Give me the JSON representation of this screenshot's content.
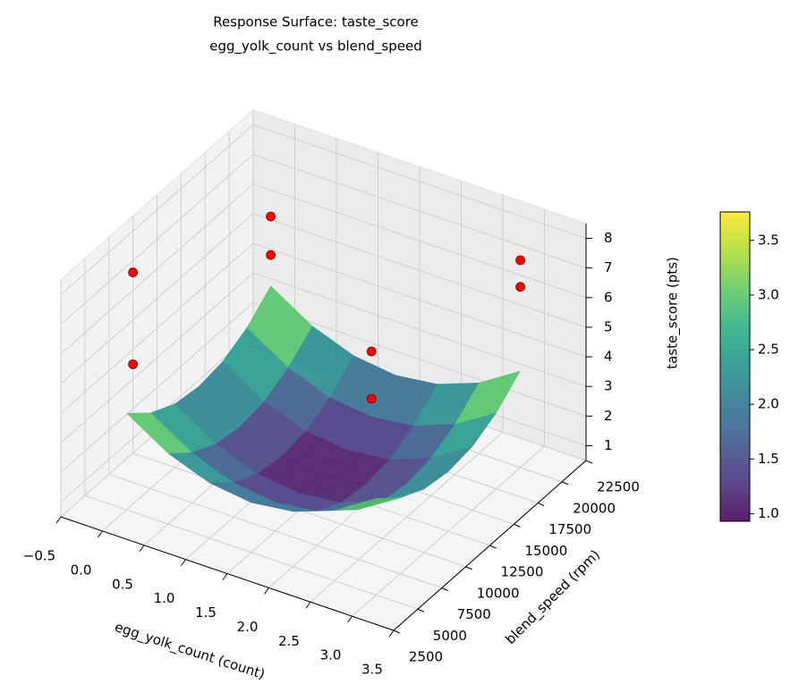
{
  "chart_data": {
    "type": "surface3d",
    "title": [
      "Response Surface: taste_score",
      "egg_yolk_count vs blend_speed"
    ],
    "xlabel": "egg_yolk_count (count)",
    "ylabel": "blend_speed (rpm)",
    "zlabel": "taste_score (pts)",
    "xlim": [
      -0.5,
      3.5
    ],
    "ylim": [
      2500,
      22500
    ],
    "zlim": [
      0.5,
      8.5
    ],
    "xticks": [
      {
        "value": -0.5,
        "label": "−0.5"
      },
      {
        "value": 0,
        "label": "0.0"
      },
      0.5,
      {
        "value": 1,
        "label": "1.0"
      },
      1.5,
      {
        "value": 2,
        "label": "2.0"
      },
      2.5,
      {
        "value": 3,
        "label": "3.0"
      },
      3.5
    ],
    "yticks": [
      2500,
      5000,
      7500,
      10000,
      12500,
      15000,
      17500,
      20000,
      22500
    ],
    "zticks": [
      1,
      2,
      3,
      4,
      5,
      6,
      7,
      8
    ],
    "grid": true,
    "colormap": "viridis",
    "surface": {
      "x": [
        0,
        0.5,
        1,
        1.5,
        2,
        2.5,
        3
      ],
      "y": [
        5000,
        7500,
        10000,
        12500,
        15000,
        17500,
        20000
      ],
      "z": [
        [
          3.76,
          2.88,
          2.36,
          2.18,
          2.36,
          2.88,
          3.76
        ],
        [
          3.06,
          2.19,
          1.66,
          1.49,
          1.66,
          2.19,
          3.06
        ],
        [
          2.64,
          1.77,
          1.24,
          1.07,
          1.24,
          1.77,
          2.64
        ],
        [
          2.51,
          1.63,
          1.11,
          0.93,
          1.11,
          1.63,
          2.51
        ],
        [
          2.64,
          1.77,
          1.24,
          1.07,
          1.24,
          1.77,
          2.64
        ],
        [
          3.06,
          2.19,
          1.66,
          1.49,
          1.66,
          2.19,
          3.06
        ],
        [
          3.76,
          2.88,
          2.36,
          2.18,
          2.36,
          2.88,
          3.76
        ]
      ]
    },
    "scatter": {
      "color": "#ff0000",
      "x": [
        -0.5,
        -0.5,
        0,
        0,
        1.5,
        1.5,
        3,
        3
      ],
      "y": [
        10000,
        10000,
        20000,
        20000,
        17500,
        17500,
        20000,
        20000
      ],
      "z": [
        6.6,
        3.5,
        6.1,
        4.8,
        3.7,
        2.1,
        7.5,
        6.6
      ]
    },
    "colorbar": {
      "clim": [
        0.93,
        3.76
      ],
      "ticks": [
        {
          "value": 1,
          "label": "1.0"
        },
        1.5,
        {
          "value": 2,
          "label": "2.0"
        },
        2.5,
        {
          "value": 3,
          "label": "3.0"
        },
        3.5
      ]
    }
  }
}
